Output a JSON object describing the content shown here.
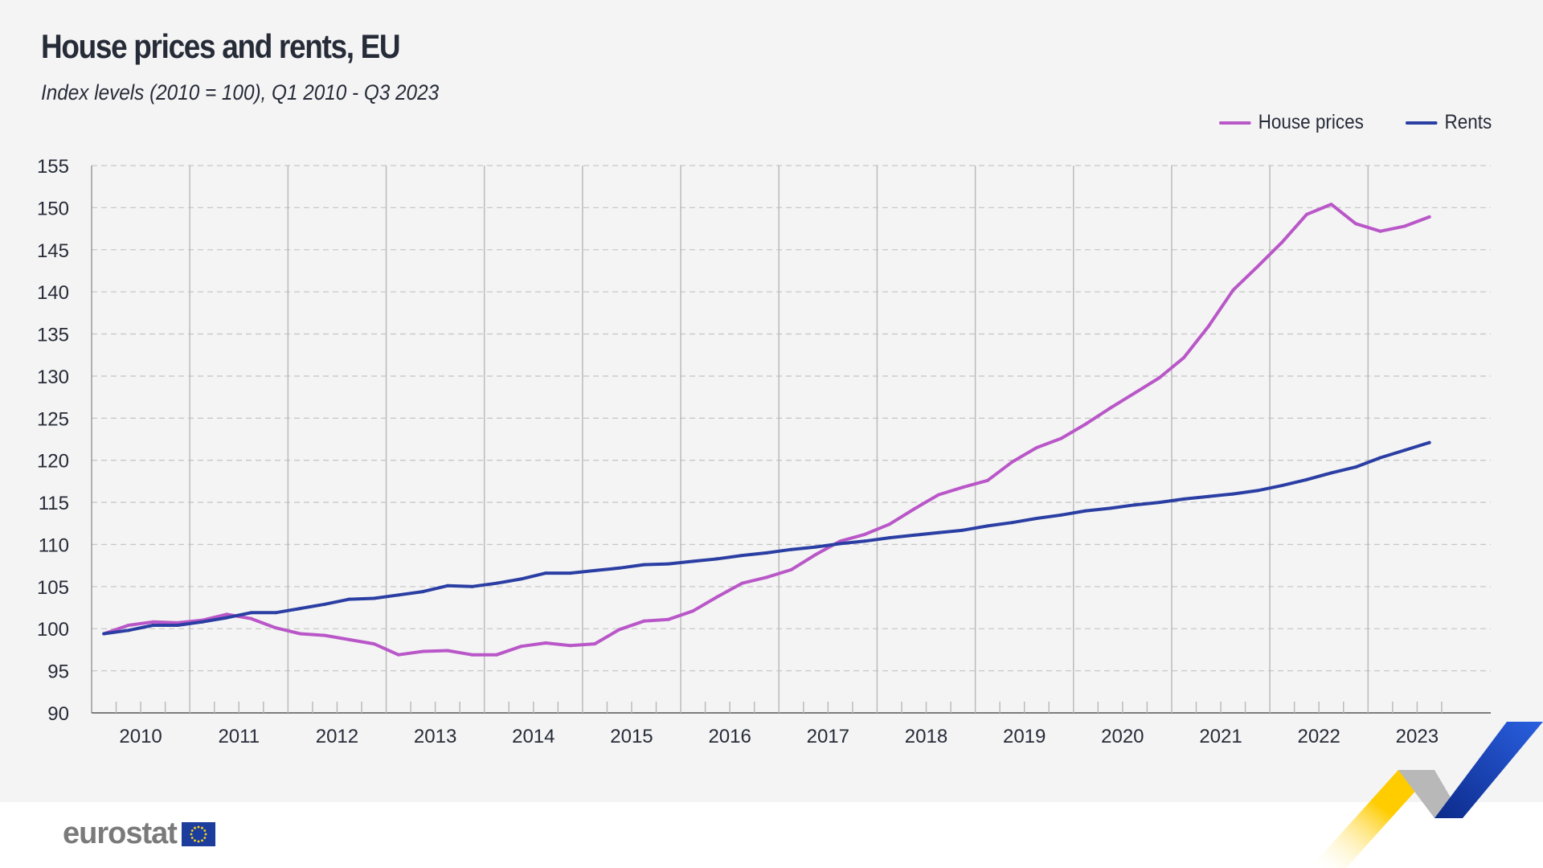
{
  "chart_data": {
    "type": "line",
    "title": "House prices and rents, EU",
    "subtitle": "Index levels (2010 = 100), Q1 2010 - Q3 2023",
    "xlabel": "",
    "ylabel": "",
    "x_tick_labels": [
      "2010",
      "2011",
      "2012",
      "2013",
      "2014",
      "2015",
      "2016",
      "2017",
      "2018",
      "2019",
      "2020",
      "2021",
      "2022",
      "2023"
    ],
    "y_ticks": [
      90,
      95,
      100,
      105,
      110,
      115,
      120,
      125,
      130,
      135,
      140,
      145,
      150,
      155
    ],
    "ylim": [
      90,
      155
    ],
    "grid": true,
    "legend_position": "top-right",
    "x_start": "2010-Q1",
    "series": [
      {
        "name": "House prices",
        "color": "#b957c8",
        "values": [
          99.4,
          100.4,
          100.8,
          100.7,
          101.0,
          101.7,
          101.2,
          100.1,
          99.4,
          99.2,
          98.7,
          98.2,
          96.9,
          97.3,
          97.4,
          96.9,
          96.9,
          97.9,
          98.3,
          98.0,
          98.2,
          99.9,
          100.9,
          101.1,
          102.1,
          103.8,
          105.4,
          106.1,
          107.0,
          108.8,
          110.4,
          111.2,
          112.4,
          114.2,
          115.9,
          116.8,
          117.6,
          119.8,
          121.5,
          122.6,
          124.3,
          126.2,
          128.0,
          129.8,
          132.2,
          135.9,
          140.2,
          143.0,
          145.9,
          149.2,
          150.4,
          148.1,
          147.2,
          147.8,
          148.9
        ]
      },
      {
        "name": "Rents",
        "color": "#2a3ea3",
        "values": [
          99.4,
          99.8,
          100.4,
          100.4,
          100.8,
          101.3,
          101.9,
          101.9,
          102.4,
          102.9,
          103.5,
          103.6,
          104.0,
          104.4,
          105.1,
          105.0,
          105.4,
          105.9,
          106.6,
          106.6,
          106.9,
          107.2,
          107.6,
          107.7,
          108.0,
          108.3,
          108.7,
          109.0,
          109.4,
          109.7,
          110.1,
          110.4,
          110.8,
          111.1,
          111.4,
          111.7,
          112.2,
          112.6,
          113.1,
          113.5,
          114.0,
          114.3,
          114.7,
          115.0,
          115.4,
          115.7,
          116.0,
          116.4,
          117.0,
          117.7,
          118.5,
          119.2,
          120.3,
          121.2,
          122.1
        ]
      }
    ]
  },
  "branding": {
    "logo_text": "eurostat"
  }
}
